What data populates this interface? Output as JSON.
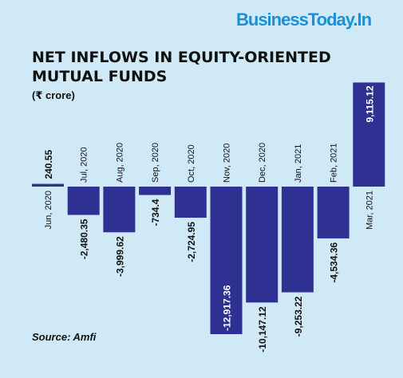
{
  "brand": "BusinessToday.In",
  "source": "Source: Amfi",
  "colors": {
    "background": "#cfe9f7",
    "bar": "#2e3192",
    "brand": "#1c8fd6"
  },
  "chart_data": {
    "type": "bar",
    "title": "NET INFLOWS IN EQUITY-ORIENTED MUTUAL FUNDS",
    "unit": "(₹ crore)",
    "categories": [
      "Jun, 2020",
      "Jul, 2020",
      "Aug, 2020",
      "Sep, 2020",
      "Oct, 2020",
      "Nov, 2020",
      "Dec, 2020",
      "Jan, 2021",
      "Feb, 2021",
      "Mar, 2021"
    ],
    "values": [
      240.55,
      -2480.35,
      -3999.62,
      -734.4,
      -2724.95,
      -12917.36,
      -10147.12,
      -9253.22,
      -4534.36,
      9115.12
    ],
    "value_labels": [
      "240.55",
      "-2,480.35",
      "-3,999.62",
      "-734.4",
      "-2,724.95",
      "-12,917.36",
      "-10,147.12",
      "-9,253.22",
      "-4,534.36",
      "9,115.12"
    ],
    "grid": false,
    "legend": "none"
  }
}
